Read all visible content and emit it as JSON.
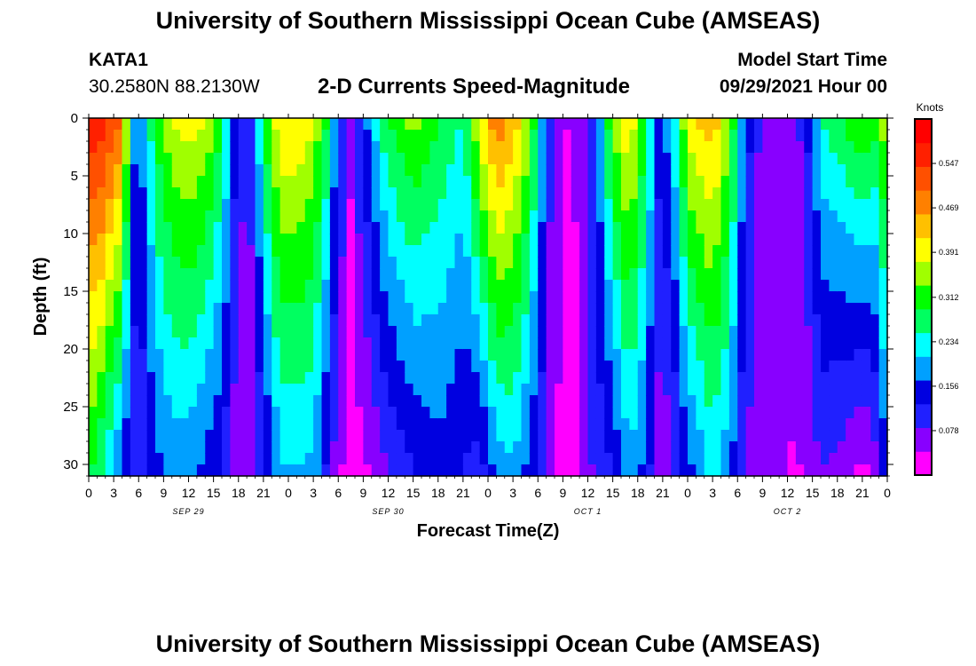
{
  "title_top": "University of Southern Mississippi Ocean Cube (AMSEAS)",
  "title_bottom": "University of Southern Mississippi Ocean Cube (AMSEAS)",
  "station": "KATA1",
  "coords": "30.2580N  88.2130W",
  "plot_title": "2-D Currents Speed-Magnitude",
  "model_start_label": "Model Start Time",
  "model_start_value": "09/29/2021 Hour 00",
  "chart_data": {
    "type": "heatmap",
    "title": "2-D Currents Speed-Magnitude",
    "xlabel": "Forecast Time(Z)",
    "ylabel": "Depth (ft)",
    "x_range_hours": [
      0,
      96
    ],
    "x_tick_hours": [
      0,
      3,
      6,
      9,
      12,
      15,
      18,
      21,
      24,
      27,
      30,
      33,
      36,
      39,
      42,
      45,
      48,
      51,
      54,
      57,
      60,
      63,
      66,
      69,
      72,
      75,
      78,
      81,
      84,
      87,
      90,
      93,
      96
    ],
    "x_tick_labels": [
      "0",
      "3",
      "6",
      "9",
      "12",
      "15",
      "18",
      "21",
      "0",
      "3",
      "6",
      "9",
      "12",
      "15",
      "18",
      "21",
      "0",
      "3",
      "6",
      "9",
      "12",
      "15",
      "18",
      "21",
      "0",
      "3",
      "6",
      "9",
      "12",
      "15",
      "18",
      "21",
      "0"
    ],
    "day_labels": [
      {
        "text": "SEP 29",
        "hour": 12
      },
      {
        "text": "SEP 30",
        "hour": 36
      },
      {
        "text": "OCT 1",
        "hour": 60
      },
      {
        "text": "OCT 2",
        "hour": 84
      }
    ],
    "y_range_ft": [
      0,
      31
    ],
    "y_ticks": [
      0,
      5,
      10,
      15,
      20,
      25,
      30
    ],
    "colorbar": {
      "unit": "Knots",
      "range": [
        0,
        0.625
      ],
      "ticks": [
        0.078,
        0.156,
        0.234,
        0.312,
        0.391,
        0.469,
        0.547
      ],
      "tick_labels": [
        "0.078",
        "0.156",
        "0.234",
        "0.312",
        "0.391",
        "0.469",
        "0.547"
      ],
      "colors": [
        "#ff00ff",
        "#8800ff",
        "#2020ff",
        "#0000e0",
        "#00a0ff",
        "#00ffff",
        "#00ff60",
        "#00ff00",
        "#a0ff00",
        "#ffff00",
        "#ffc000",
        "#ff8000",
        "#ff5000",
        "#ff2000",
        "#ff0000"
      ]
    },
    "profile_nodes": [
      {
        "hour": 0,
        "surface": 0.58,
        "bottom": 0.3
      },
      {
        "hour": 1.5,
        "surface": 0.58,
        "bottom": 0.25
      },
      {
        "hour": 4,
        "surface": 0.5,
        "bottom": 0.15
      },
      {
        "hour": 5.2,
        "surface": 0.2,
        "bottom": 0.1
      },
      {
        "hour": 6,
        "surface": 0.15,
        "bottom": 0.08
      },
      {
        "hour": 8,
        "surface": 0.3,
        "bottom": 0.15
      },
      {
        "hour": 10,
        "surface": 0.38,
        "bottom": 0.18
      },
      {
        "hour": 12,
        "surface": 0.4,
        "bottom": 0.18
      },
      {
        "hour": 14,
        "surface": 0.38,
        "bottom": 0.15
      },
      {
        "hour": 16,
        "surface": 0.3,
        "bottom": 0.12
      },
      {
        "hour": 17,
        "surface": 0.2,
        "bottom": 0.08
      },
      {
        "hour": 18,
        "surface": 0.1,
        "bottom": 0.05
      },
      {
        "hour": 19.5,
        "surface": 0.1,
        "bottom": 0.06
      },
      {
        "hour": 21,
        "surface": 0.3,
        "bottom": 0.1
      },
      {
        "hour": 23,
        "surface": 0.42,
        "bottom": 0.2
      },
      {
        "hour": 25,
        "surface": 0.42,
        "bottom": 0.2
      },
      {
        "hour": 27,
        "surface": 0.38,
        "bottom": 0.2
      },
      {
        "hour": 28.5,
        "surface": 0.3,
        "bottom": 0.12
      },
      {
        "hour": 30,
        "surface": 0.15,
        "bottom": 0.05
      },
      {
        "hour": 31.5,
        "surface": 0.05,
        "bottom": 0.02
      },
      {
        "hour": 33,
        "surface": 0.15,
        "bottom": 0.03
      },
      {
        "hour": 36,
        "surface": 0.3,
        "bottom": 0.08
      },
      {
        "hour": 39,
        "surface": 0.35,
        "bottom": 0.12
      },
      {
        "hour": 42,
        "surface": 0.3,
        "bottom": 0.15
      },
      {
        "hour": 45,
        "surface": 0.25,
        "bottom": 0.12
      },
      {
        "hour": 47,
        "surface": 0.4,
        "bottom": 0.1
      },
      {
        "hour": 49,
        "surface": 0.5,
        "bottom": 0.18
      },
      {
        "hour": 51,
        "surface": 0.45,
        "bottom": 0.2
      },
      {
        "hour": 53,
        "surface": 0.35,
        "bottom": 0.15
      },
      {
        "hour": 54.5,
        "surface": 0.2,
        "bottom": 0.1
      },
      {
        "hour": 55.5,
        "surface": 0.1,
        "bottom": 0.05
      },
      {
        "hour": 57,
        "surface": 0.04,
        "bottom": 0.03
      },
      {
        "hour": 59,
        "surface": 0.05,
        "bottom": 0.03
      },
      {
        "hour": 61,
        "surface": 0.15,
        "bottom": 0.1
      },
      {
        "hour": 63,
        "surface": 0.35,
        "bottom": 0.12
      },
      {
        "hour": 65,
        "surface": 0.42,
        "bottom": 0.2
      },
      {
        "hour": 67,
        "surface": 0.3,
        "bottom": 0.15
      },
      {
        "hour": 68.5,
        "surface": 0.15,
        "bottom": 0.06
      },
      {
        "hour": 70,
        "surface": 0.2,
        "bottom": 0.06
      },
      {
        "hour": 72,
        "surface": 0.4,
        "bottom": 0.15
      },
      {
        "hour": 75,
        "surface": 0.45,
        "bottom": 0.22
      },
      {
        "hour": 77,
        "surface": 0.35,
        "bottom": 0.18
      },
      {
        "hour": 78.5,
        "surface": 0.2,
        "bottom": 0.1
      },
      {
        "hour": 80,
        "surface": 0.1,
        "bottom": 0.06
      },
      {
        "hour": 82,
        "surface": 0.05,
        "bottom": 0.05
      },
      {
        "hour": 84,
        "surface": 0.05,
        "bottom": 0.04
      },
      {
        "hour": 86,
        "surface": 0.1,
        "bottom": 0.04
      },
      {
        "hour": 88,
        "surface": 0.25,
        "bottom": 0.08
      },
      {
        "hour": 91,
        "surface": 0.3,
        "bottom": 0.06
      },
      {
        "hour": 93,
        "surface": 0.35,
        "bottom": 0.02
      },
      {
        "hour": 95,
        "surface": 0.3,
        "bottom": 0.08
      },
      {
        "hour": 96,
        "surface": 0.4,
        "bottom": 0.2
      }
    ]
  }
}
